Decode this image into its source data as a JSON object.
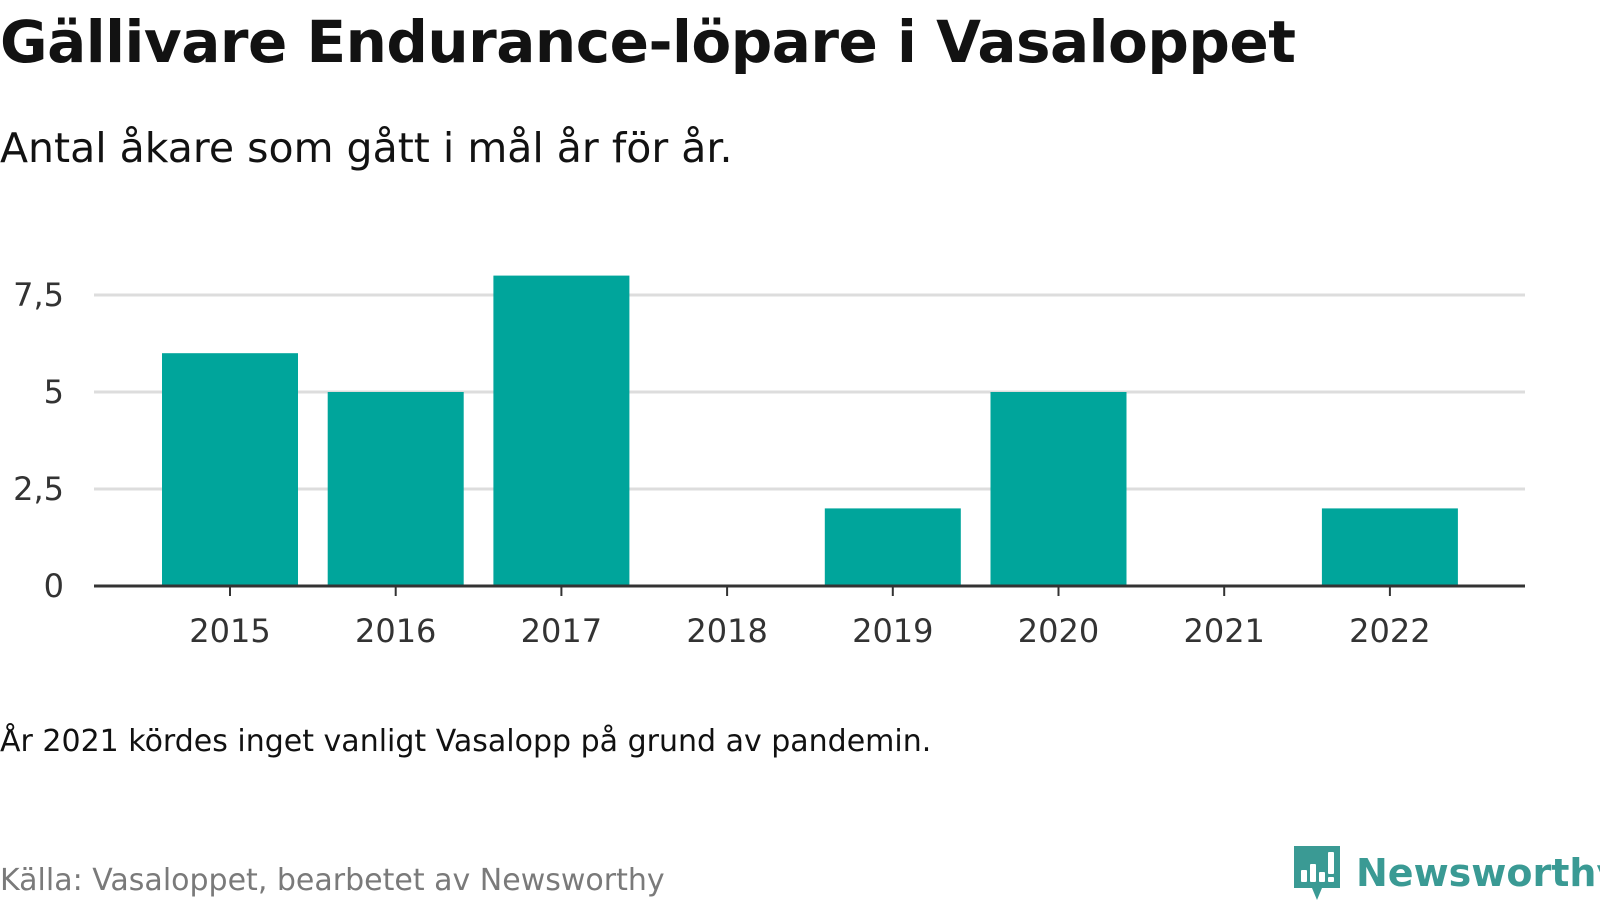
{
  "header": {
    "title": "Gällivare Endurance-löpare i Vasaloppet",
    "subtitle": "Antal åkare som gått i mål år för år."
  },
  "chart_data": {
    "type": "bar",
    "categories": [
      "2015",
      "2016",
      "2017",
      "2018",
      "2019",
      "2020",
      "2021",
      "2022"
    ],
    "values": [
      6,
      5,
      8,
      0,
      2,
      5,
      0,
      2
    ],
    "ylim": [
      0,
      8.2
    ],
    "yticks": [
      {
        "value": 0,
        "label": "0"
      },
      {
        "value": 2.5,
        "label": "2,5"
      },
      {
        "value": 5,
        "label": "5"
      },
      {
        "value": 7.5,
        "label": "7,5"
      }
    ],
    "grid": true,
    "bar_color": "#00a59b",
    "grid_color": "#dddddd",
    "axis_color": "#333333"
  },
  "footer": {
    "note": "År 2021 kördes inget vanligt Vasalopp på grund av pandemin.",
    "source": "Källa: Vasaloppet, bearbetet av Newsworthy",
    "brand_name": "Newsworthy",
    "brand_icon": "newsworthy-logo-icon",
    "brand_color": "#3a9a94"
  }
}
